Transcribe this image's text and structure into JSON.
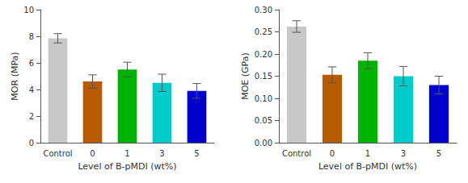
{
  "chart_data": [
    {
      "type": "bar",
      "xlabel": "Level of B-pMDI (wt%)",
      "ylabel": "MOR (MPa)",
      "categories": [
        "Control",
        "0",
        "1",
        "3",
        "5"
      ],
      "values": [
        7.85,
        4.6,
        5.5,
        4.5,
        3.9
      ],
      "errors": [
        0.35,
        0.5,
        0.55,
        0.65,
        0.55
      ],
      "colors": [
        "#c8c8c8",
        "#b85a00",
        "#00b200",
        "#00cccc",
        "#0000cc"
      ],
      "ylim": [
        0,
        10
      ],
      "yticks": [
        0,
        2,
        4,
        6,
        8,
        10
      ],
      "grid": false
    },
    {
      "type": "bar",
      "xlabel": "Level of B-pMDI (wt%)",
      "ylabel": "MOE (GPa)",
      "categories": [
        "Control",
        "0",
        "1",
        "3",
        "5"
      ],
      "values": [
        0.262,
        0.153,
        0.185,
        0.15,
        0.13
      ],
      "errors": [
        0.013,
        0.018,
        0.018,
        0.022,
        0.02
      ],
      "colors": [
        "#c8c8c8",
        "#b85a00",
        "#00b200",
        "#00cccc",
        "#0000cc"
      ],
      "ylim": [
        0,
        0.3
      ],
      "yticks": [
        {
          "value": 0.0,
          "label": "0.00"
        },
        {
          "value": 0.05,
          "label": "0.05"
        },
        {
          "value": 0.1,
          "label": "0.10"
        },
        {
          "value": 0.15,
          "label": "0.15"
        },
        {
          "value": 0.2,
          "label": "0.20"
        },
        {
          "value": 0.25,
          "label": "0.25"
        },
        {
          "value": 0.3,
          "label": "0.30"
        }
      ],
      "grid": false
    }
  ]
}
